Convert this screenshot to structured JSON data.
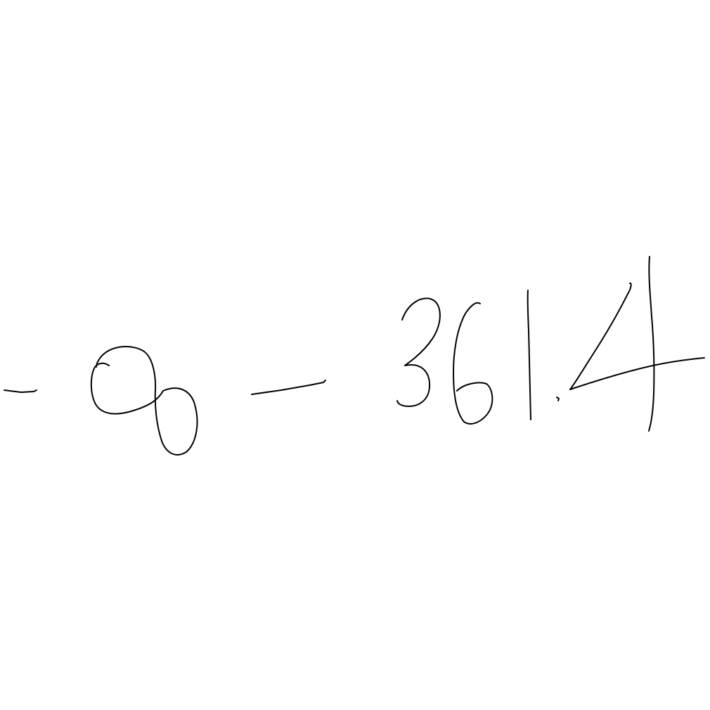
{
  "handwriting": {
    "expression": "-∞ - 3614",
    "ink_color": "#000000",
    "background_color": "#ffffff"
  }
}
